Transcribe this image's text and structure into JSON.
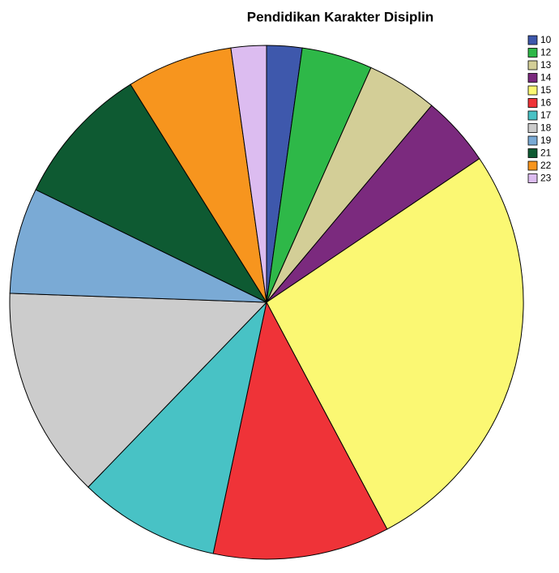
{
  "chart_data": {
    "type": "pie",
    "title": "Pendidikan Karakter Disiplin",
    "categories": [
      "10",
      "12",
      "13",
      "14",
      "15",
      "16",
      "17",
      "18",
      "19",
      "21",
      "22",
      "23"
    ],
    "values": [
      1,
      2,
      2,
      2,
      12,
      5,
      4,
      6,
      3,
      4,
      3,
      1
    ],
    "colors": [
      "#3e58ac",
      "#2eb848",
      "#d3ce97",
      "#7b2a7e",
      "#fbf873",
      "#ef3338",
      "#48c2c5",
      "#cccccc",
      "#7aaad5",
      "#0e5a32",
      "#f7951e",
      "#dcbcf0"
    ],
    "legend": "right"
  }
}
